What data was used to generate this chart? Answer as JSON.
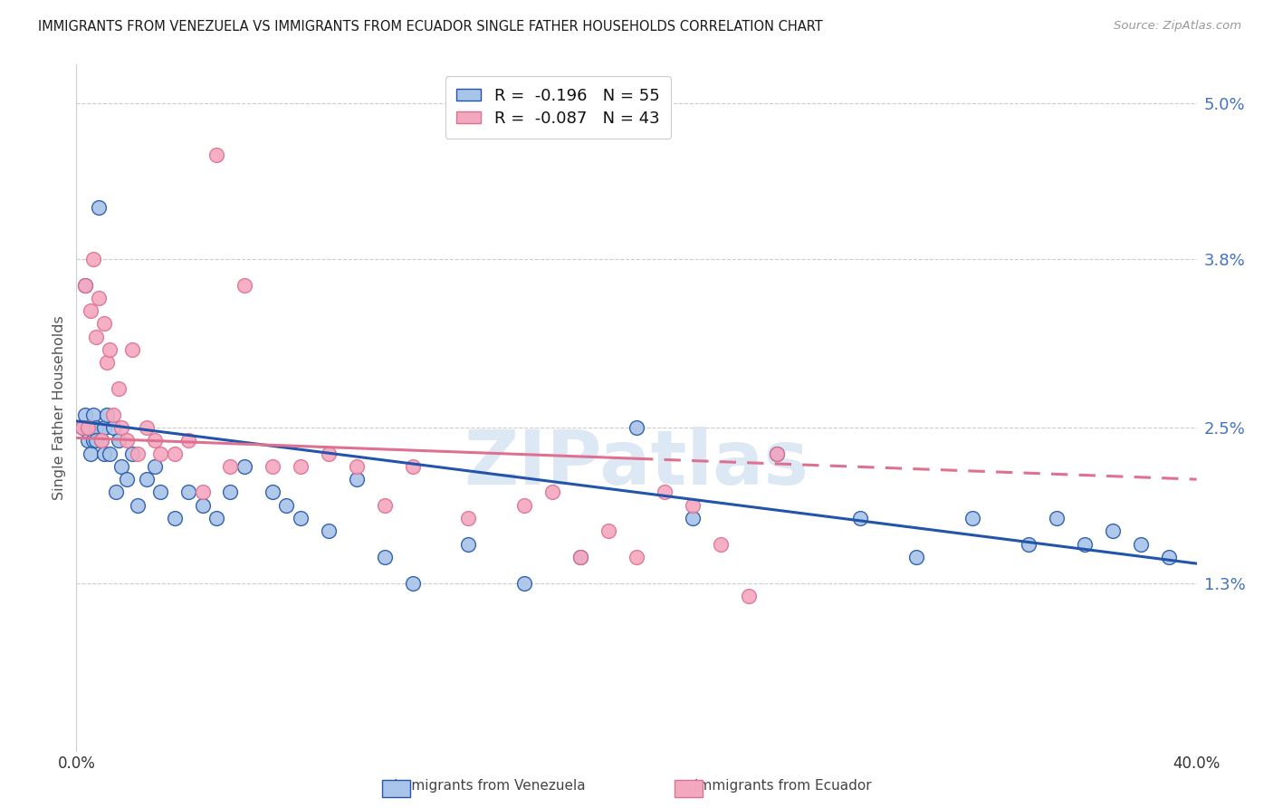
{
  "title": "IMMIGRANTS FROM VENEZUELA VS IMMIGRANTS FROM ECUADOR SINGLE FATHER HOUSEHOLDS CORRELATION CHART",
  "source": "Source: ZipAtlas.com",
  "ylabel": "Single Father Households",
  "ytick_vals": [
    0.0,
    1.3,
    2.5,
    3.8,
    5.0
  ],
  "ytick_labels": [
    "",
    "1.3%",
    "2.5%",
    "3.8%",
    "5.0%"
  ],
  "xmin": 0.0,
  "xmax": 40.0,
  "ymin": 0.0,
  "ymax": 5.3,
  "color_venezuela": "#a8c4e8",
  "color_ecuador": "#f4a8c0",
  "line_color_venezuela": "#2255aa",
  "line_color_ecuador": "#e07090",
  "watermark_color": "#dde8f5",
  "venezuela_x": [
    0.2,
    0.3,
    0.3,
    0.4,
    0.4,
    0.5,
    0.5,
    0.6,
    0.6,
    0.7,
    0.7,
    0.8,
    0.9,
    1.0,
    1.0,
    1.1,
    1.2,
    1.3,
    1.4,
    1.5,
    1.6,
    1.8,
    2.0,
    2.2,
    2.5,
    2.8,
    3.0,
    3.5,
    4.0,
    4.5,
    5.0,
    5.5,
    6.0,
    7.0,
    7.5,
    8.0,
    9.0,
    10.0,
    11.0,
    12.0,
    14.0,
    16.0,
    18.0,
    20.0,
    22.0,
    25.0,
    28.0,
    30.0,
    32.0,
    34.0,
    35.0,
    36.0,
    37.0,
    38.0,
    39.0
  ],
  "venezuela_y": [
    2.5,
    2.6,
    3.6,
    2.4,
    2.5,
    2.5,
    2.3,
    2.6,
    2.4,
    2.5,
    2.4,
    4.2,
    2.4,
    2.5,
    2.3,
    2.6,
    2.3,
    2.5,
    2.0,
    2.4,
    2.2,
    2.1,
    2.3,
    1.9,
    2.1,
    2.2,
    2.0,
    1.8,
    2.0,
    1.9,
    1.8,
    2.0,
    2.2,
    2.0,
    1.9,
    1.8,
    1.7,
    2.1,
    1.5,
    1.3,
    1.6,
    1.3,
    1.5,
    2.5,
    1.8,
    2.3,
    1.8,
    1.5,
    1.8,
    1.6,
    1.8,
    1.6,
    1.7,
    1.6,
    1.5
  ],
  "ecuador_x": [
    0.2,
    0.3,
    0.4,
    0.5,
    0.6,
    0.7,
    0.8,
    0.9,
    1.0,
    1.1,
    1.2,
    1.3,
    1.5,
    1.6,
    1.8,
    2.0,
    2.2,
    2.5,
    2.8,
    3.0,
    3.5,
    4.0,
    4.5,
    5.0,
    5.5,
    6.0,
    7.0,
    8.0,
    9.0,
    10.0,
    11.0,
    12.0,
    14.0,
    16.0,
    17.0,
    18.0,
    19.0,
    20.0,
    21.0,
    22.0,
    23.0,
    24.0,
    25.0
  ],
  "ecuador_y": [
    2.5,
    3.6,
    2.5,
    3.4,
    3.8,
    3.2,
    3.5,
    2.4,
    3.3,
    3.0,
    3.1,
    2.6,
    2.8,
    2.5,
    2.4,
    3.1,
    2.3,
    2.5,
    2.4,
    2.3,
    2.3,
    2.4,
    2.0,
    4.6,
    2.2,
    3.6,
    2.2,
    2.2,
    2.3,
    2.2,
    1.9,
    2.2,
    1.8,
    1.9,
    2.0,
    1.5,
    1.7,
    1.5,
    2.0,
    1.9,
    1.6,
    1.2,
    2.3
  ],
  "ven_line_x0": 0.0,
  "ven_line_x1": 40.0,
  "ven_line_y0": 2.55,
  "ven_line_y1": 1.45,
  "ecu_line_x0": 0.0,
  "ecu_line_x1": 40.0,
  "ecu_line_y0": 2.42,
  "ecu_line_y1": 2.1,
  "ecu_solid_end_x": 20.0
}
